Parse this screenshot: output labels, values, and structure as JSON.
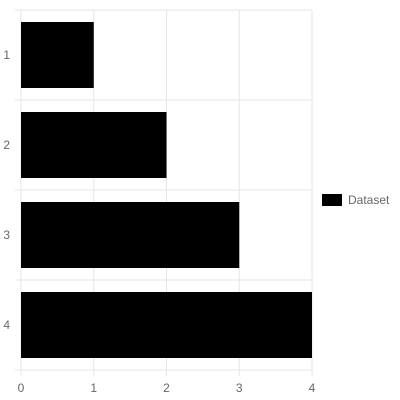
{
  "chart_data": {
    "type": "bar",
    "orientation": "horizontal",
    "categories": [
      "1",
      "2",
      "3",
      "4"
    ],
    "series": [
      {
        "name": "Dataset",
        "values": [
          1,
          2,
          3,
          4
        ],
        "color": "#000000"
      }
    ],
    "title": "",
    "xlabel": "",
    "ylabel": "",
    "xlim": [
      0,
      4
    ],
    "x_ticks": [
      "0",
      "1",
      "2",
      "3",
      "4"
    ],
    "grid": true,
    "legend": {
      "position": "right",
      "entries": [
        "Dataset"
      ]
    }
  },
  "colors": {
    "grid": "#e6e6e6",
    "axis_text": "#666666",
    "bar": "#000000"
  }
}
